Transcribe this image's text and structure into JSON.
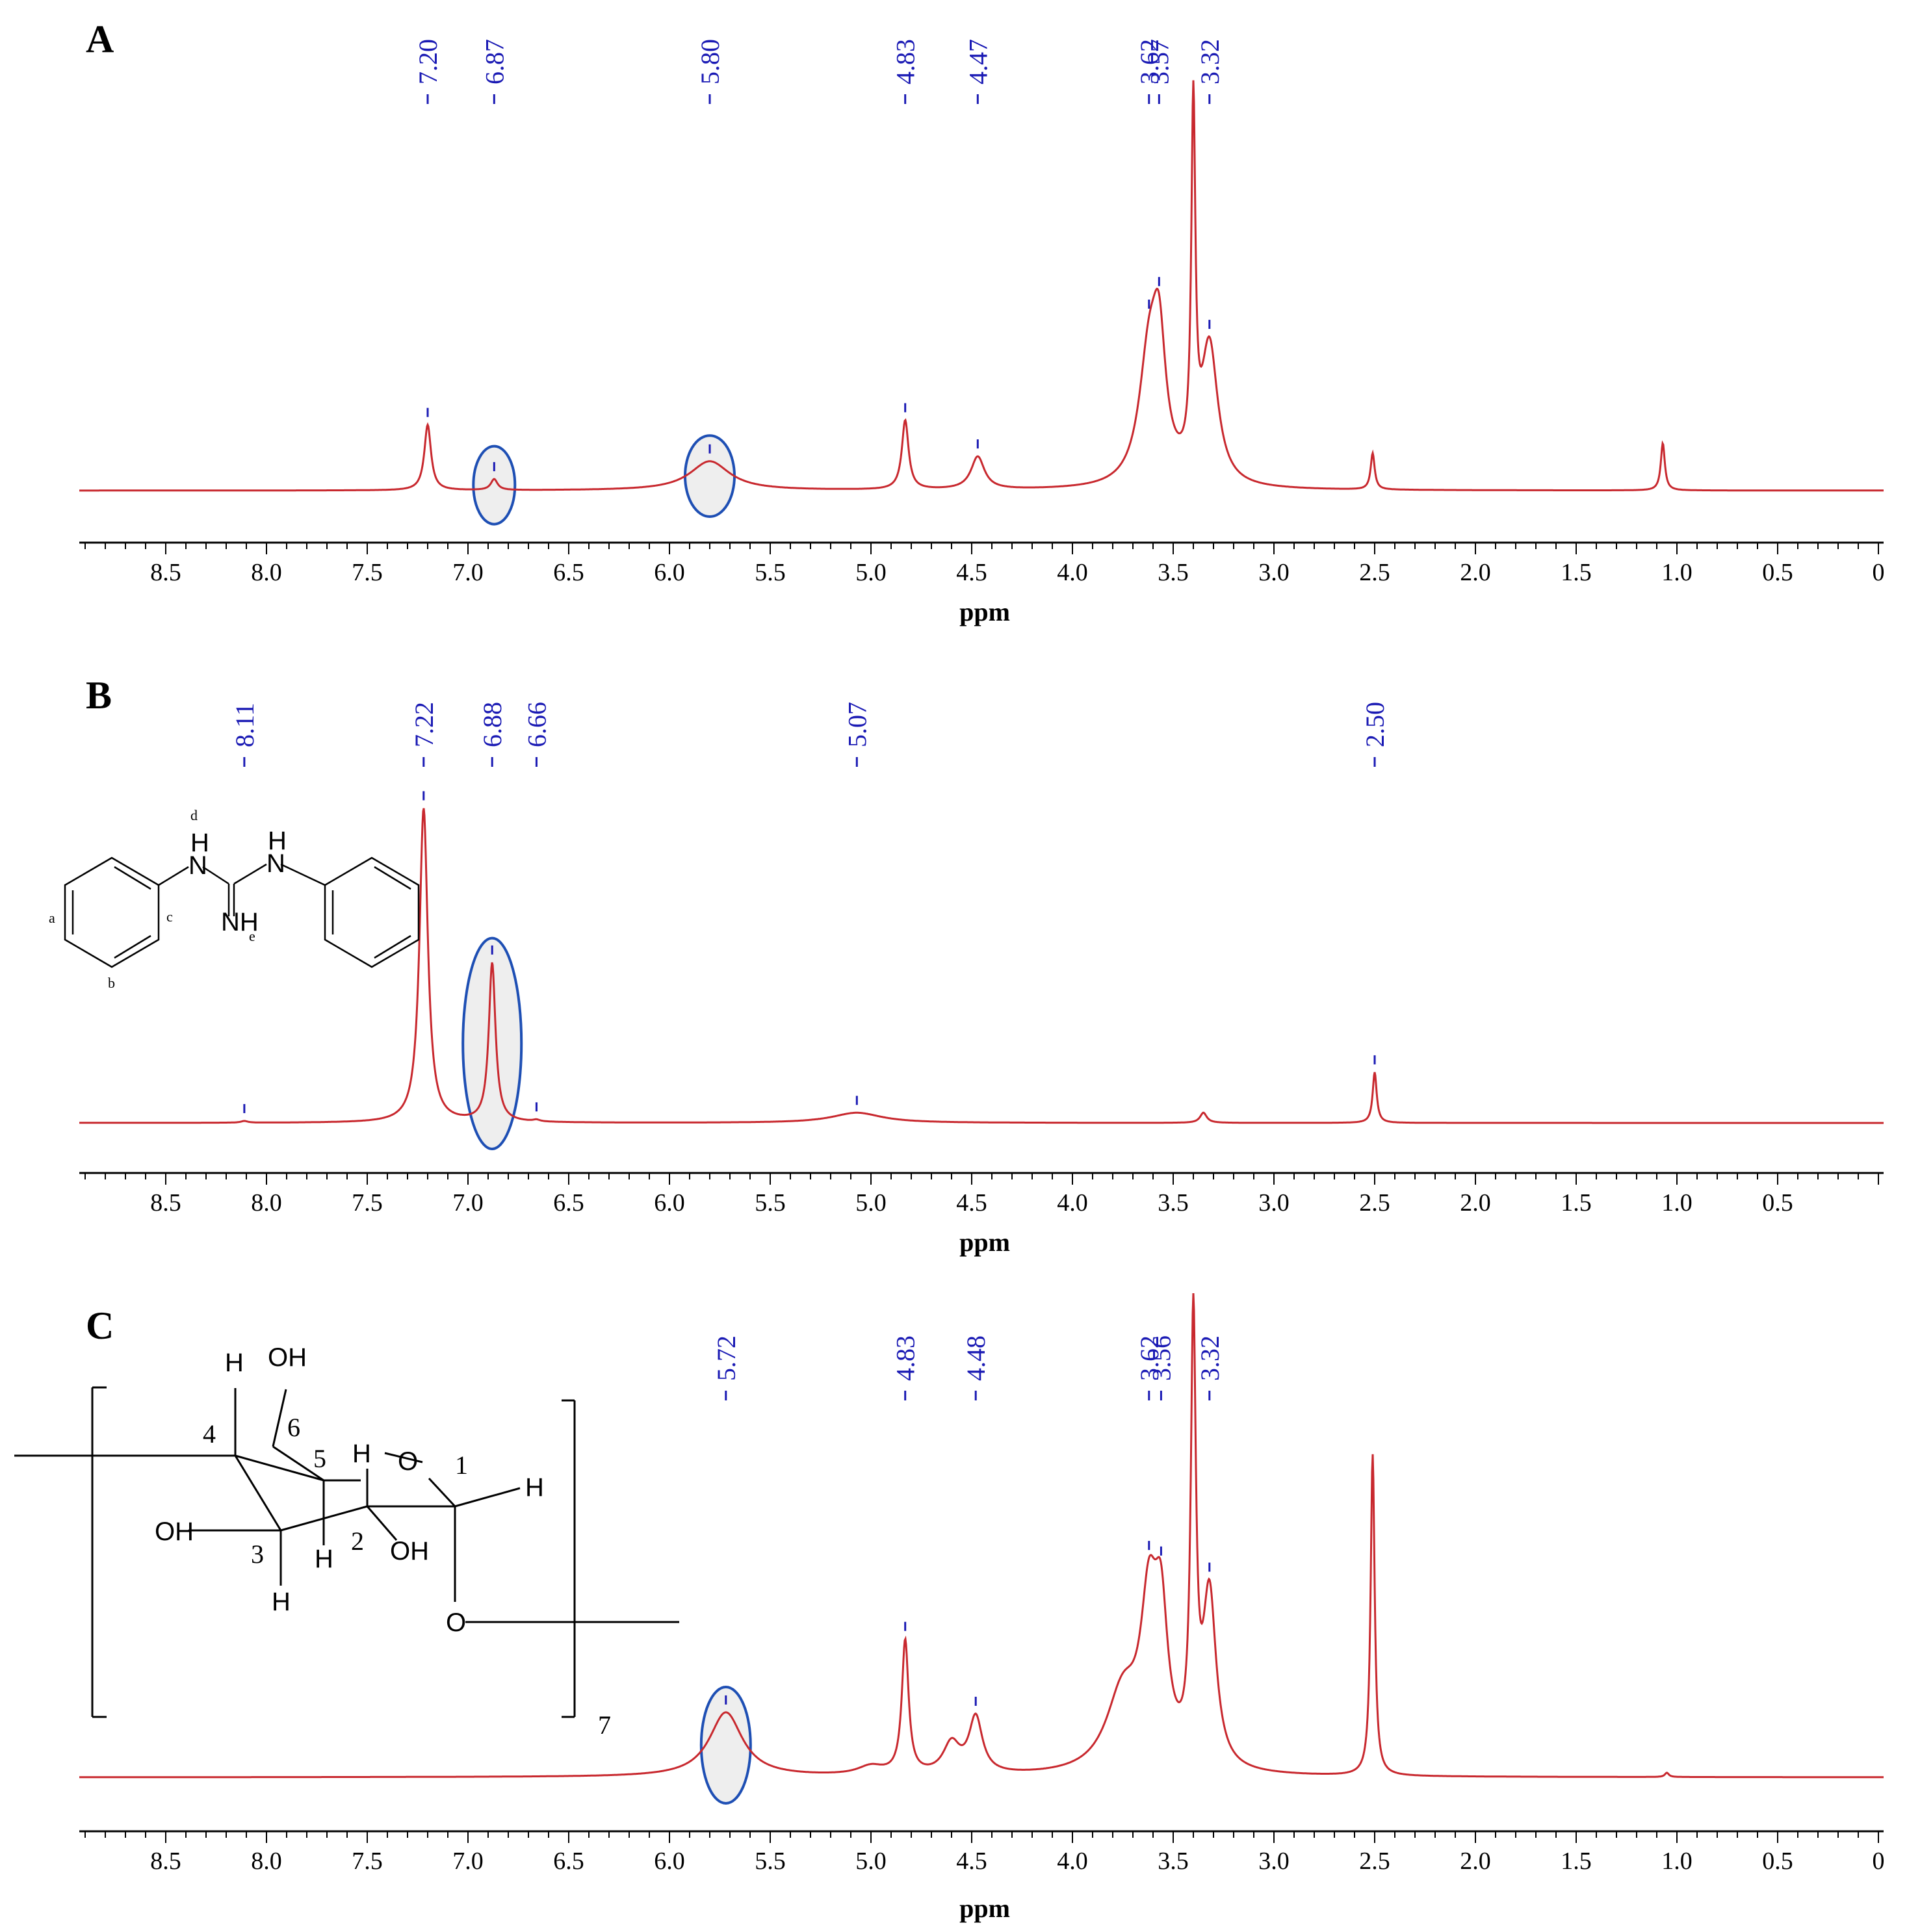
{
  "colors": {
    "spectrum": "#c8282e",
    "peak_label": "#1a1ab4",
    "highlight": "#1e4fb4",
    "highlight_fill": "#eeeeee",
    "axis": "#000000"
  },
  "chart_data": [
    {
      "type": "line",
      "panel": "A",
      "xlabel": "ppm",
      "x_ticks": [
        "8.5",
        "8.0",
        "7.5",
        "7.0",
        "6.5",
        "6.0",
        "5.5",
        "5.0",
        "4.5",
        "4.0",
        "3.5",
        "3.0",
        "2.5",
        "2.0",
        "1.5",
        "1.0",
        "0.5",
        "0"
      ],
      "xlim": [
        9.0,
        0.0
      ],
      "x_reversed": true,
      "peak_labels": [
        "7.20",
        "6.87",
        "5.80",
        "4.83",
        "4.47",
        "3.62",
        "3.57",
        "3.32"
      ],
      "highlighted_peaks": [
        6.87,
        5.8
      ],
      "peaks": [
        {
          "ppm": 7.2,
          "height": 0.18,
          "width": 0.02
        },
        {
          "ppm": 6.87,
          "height": 0.03,
          "width": 0.02
        },
        {
          "ppm": 5.8,
          "height": 0.08,
          "width": 0.12
        },
        {
          "ppm": 4.83,
          "height": 0.19,
          "width": 0.02
        },
        {
          "ppm": 4.47,
          "height": 0.09,
          "width": 0.04
        },
        {
          "ppm": 3.62,
          "height": 0.34,
          "width": 0.06
        },
        {
          "ppm": 3.57,
          "height": 0.32,
          "width": 0.04
        },
        {
          "ppm": 3.4,
          "height": 0.98,
          "width": 0.012
        },
        {
          "ppm": 3.32,
          "height": 0.38,
          "width": 0.05
        },
        {
          "ppm": 2.51,
          "height": 0.1,
          "width": 0.012
        },
        {
          "ppm": 1.07,
          "height": 0.13,
          "width": 0.012
        }
      ]
    },
    {
      "type": "line",
      "panel": "B",
      "xlabel": "ppm",
      "x_ticks": [
        "8.5",
        "8.0",
        "7.5",
        "7.0",
        "6.5",
        "6.0",
        "5.5",
        "5.0",
        "4.5",
        "4.0",
        "3.5",
        "3.0",
        "2.5",
        "2.0",
        "1.5",
        "1.0",
        "0.5"
      ],
      "xlim": [
        9.0,
        0.0
      ],
      "x_reversed": true,
      "peak_labels": [
        "8.11",
        "7.22",
        "6.88",
        "6.66",
        "5.07",
        "2.50"
      ],
      "highlighted_peaks": [
        6.88
      ],
      "structure_labels": [
        "d",
        "a",
        "c",
        "b",
        "e"
      ],
      "structure_atoms": [
        "H",
        "N",
        "H",
        "N",
        "NH"
      ],
      "peaks": [
        {
          "ppm": 8.11,
          "height": 0.005,
          "width": 0.02
        },
        {
          "ppm": 7.22,
          "height": 0.93,
          "width": 0.025
        },
        {
          "ppm": 6.88,
          "height": 0.47,
          "width": 0.02
        },
        {
          "ppm": 6.66,
          "height": 0.005,
          "width": 0.02
        },
        {
          "ppm": 5.07,
          "height": 0.03,
          "width": 0.15
        },
        {
          "ppm": 3.35,
          "height": 0.03,
          "width": 0.02
        },
        {
          "ppm": 2.5,
          "height": 0.15,
          "width": 0.012
        }
      ]
    },
    {
      "type": "line",
      "panel": "C",
      "xlabel": "ppm",
      "x_ticks": [
        "8.5",
        "8.0",
        "7.5",
        "7.0",
        "6.5",
        "6.0",
        "5.5",
        "5.0",
        "4.5",
        "4.0",
        "3.5",
        "3.0",
        "2.5",
        "2.0",
        "1.5",
        "1.0",
        "0.5",
        "0"
      ],
      "xlim": [
        9.0,
        0.0
      ],
      "x_reversed": true,
      "peak_labels": [
        "5.72",
        "4.83",
        "4.48",
        "3.62",
        "3.56",
        "3.32"
      ],
      "highlighted_peaks": [
        5.72
      ],
      "structure_atoms": [
        "H",
        "OH",
        "4",
        "6",
        "5",
        "H",
        "O",
        "1",
        "H",
        "OH",
        "3",
        "H",
        "2",
        "OH",
        "H",
        "O"
      ],
      "repeat_count": "7",
      "peaks": [
        {
          "ppm": 5.72,
          "height": 0.15,
          "width": 0.1
        },
        {
          "ppm": 5.0,
          "height": 0.02,
          "width": 0.08
        },
        {
          "ppm": 4.83,
          "height": 0.31,
          "width": 0.02
        },
        {
          "ppm": 4.6,
          "height": 0.07,
          "width": 0.05
        },
        {
          "ppm": 4.48,
          "height": 0.13,
          "width": 0.04
        },
        {
          "ppm": 3.75,
          "height": 0.18,
          "width": 0.1
        },
        {
          "ppm": 3.62,
          "height": 0.34,
          "width": 0.05
        },
        {
          "ppm": 3.56,
          "height": 0.3,
          "width": 0.04
        },
        {
          "ppm": 3.4,
          "height": 1.0,
          "width": 0.015
        },
        {
          "ppm": 3.32,
          "height": 0.4,
          "width": 0.04
        },
        {
          "ppm": 2.51,
          "height": 0.75,
          "width": 0.012
        },
        {
          "ppm": 1.05,
          "height": 0.01,
          "width": 0.012
        }
      ]
    }
  ]
}
